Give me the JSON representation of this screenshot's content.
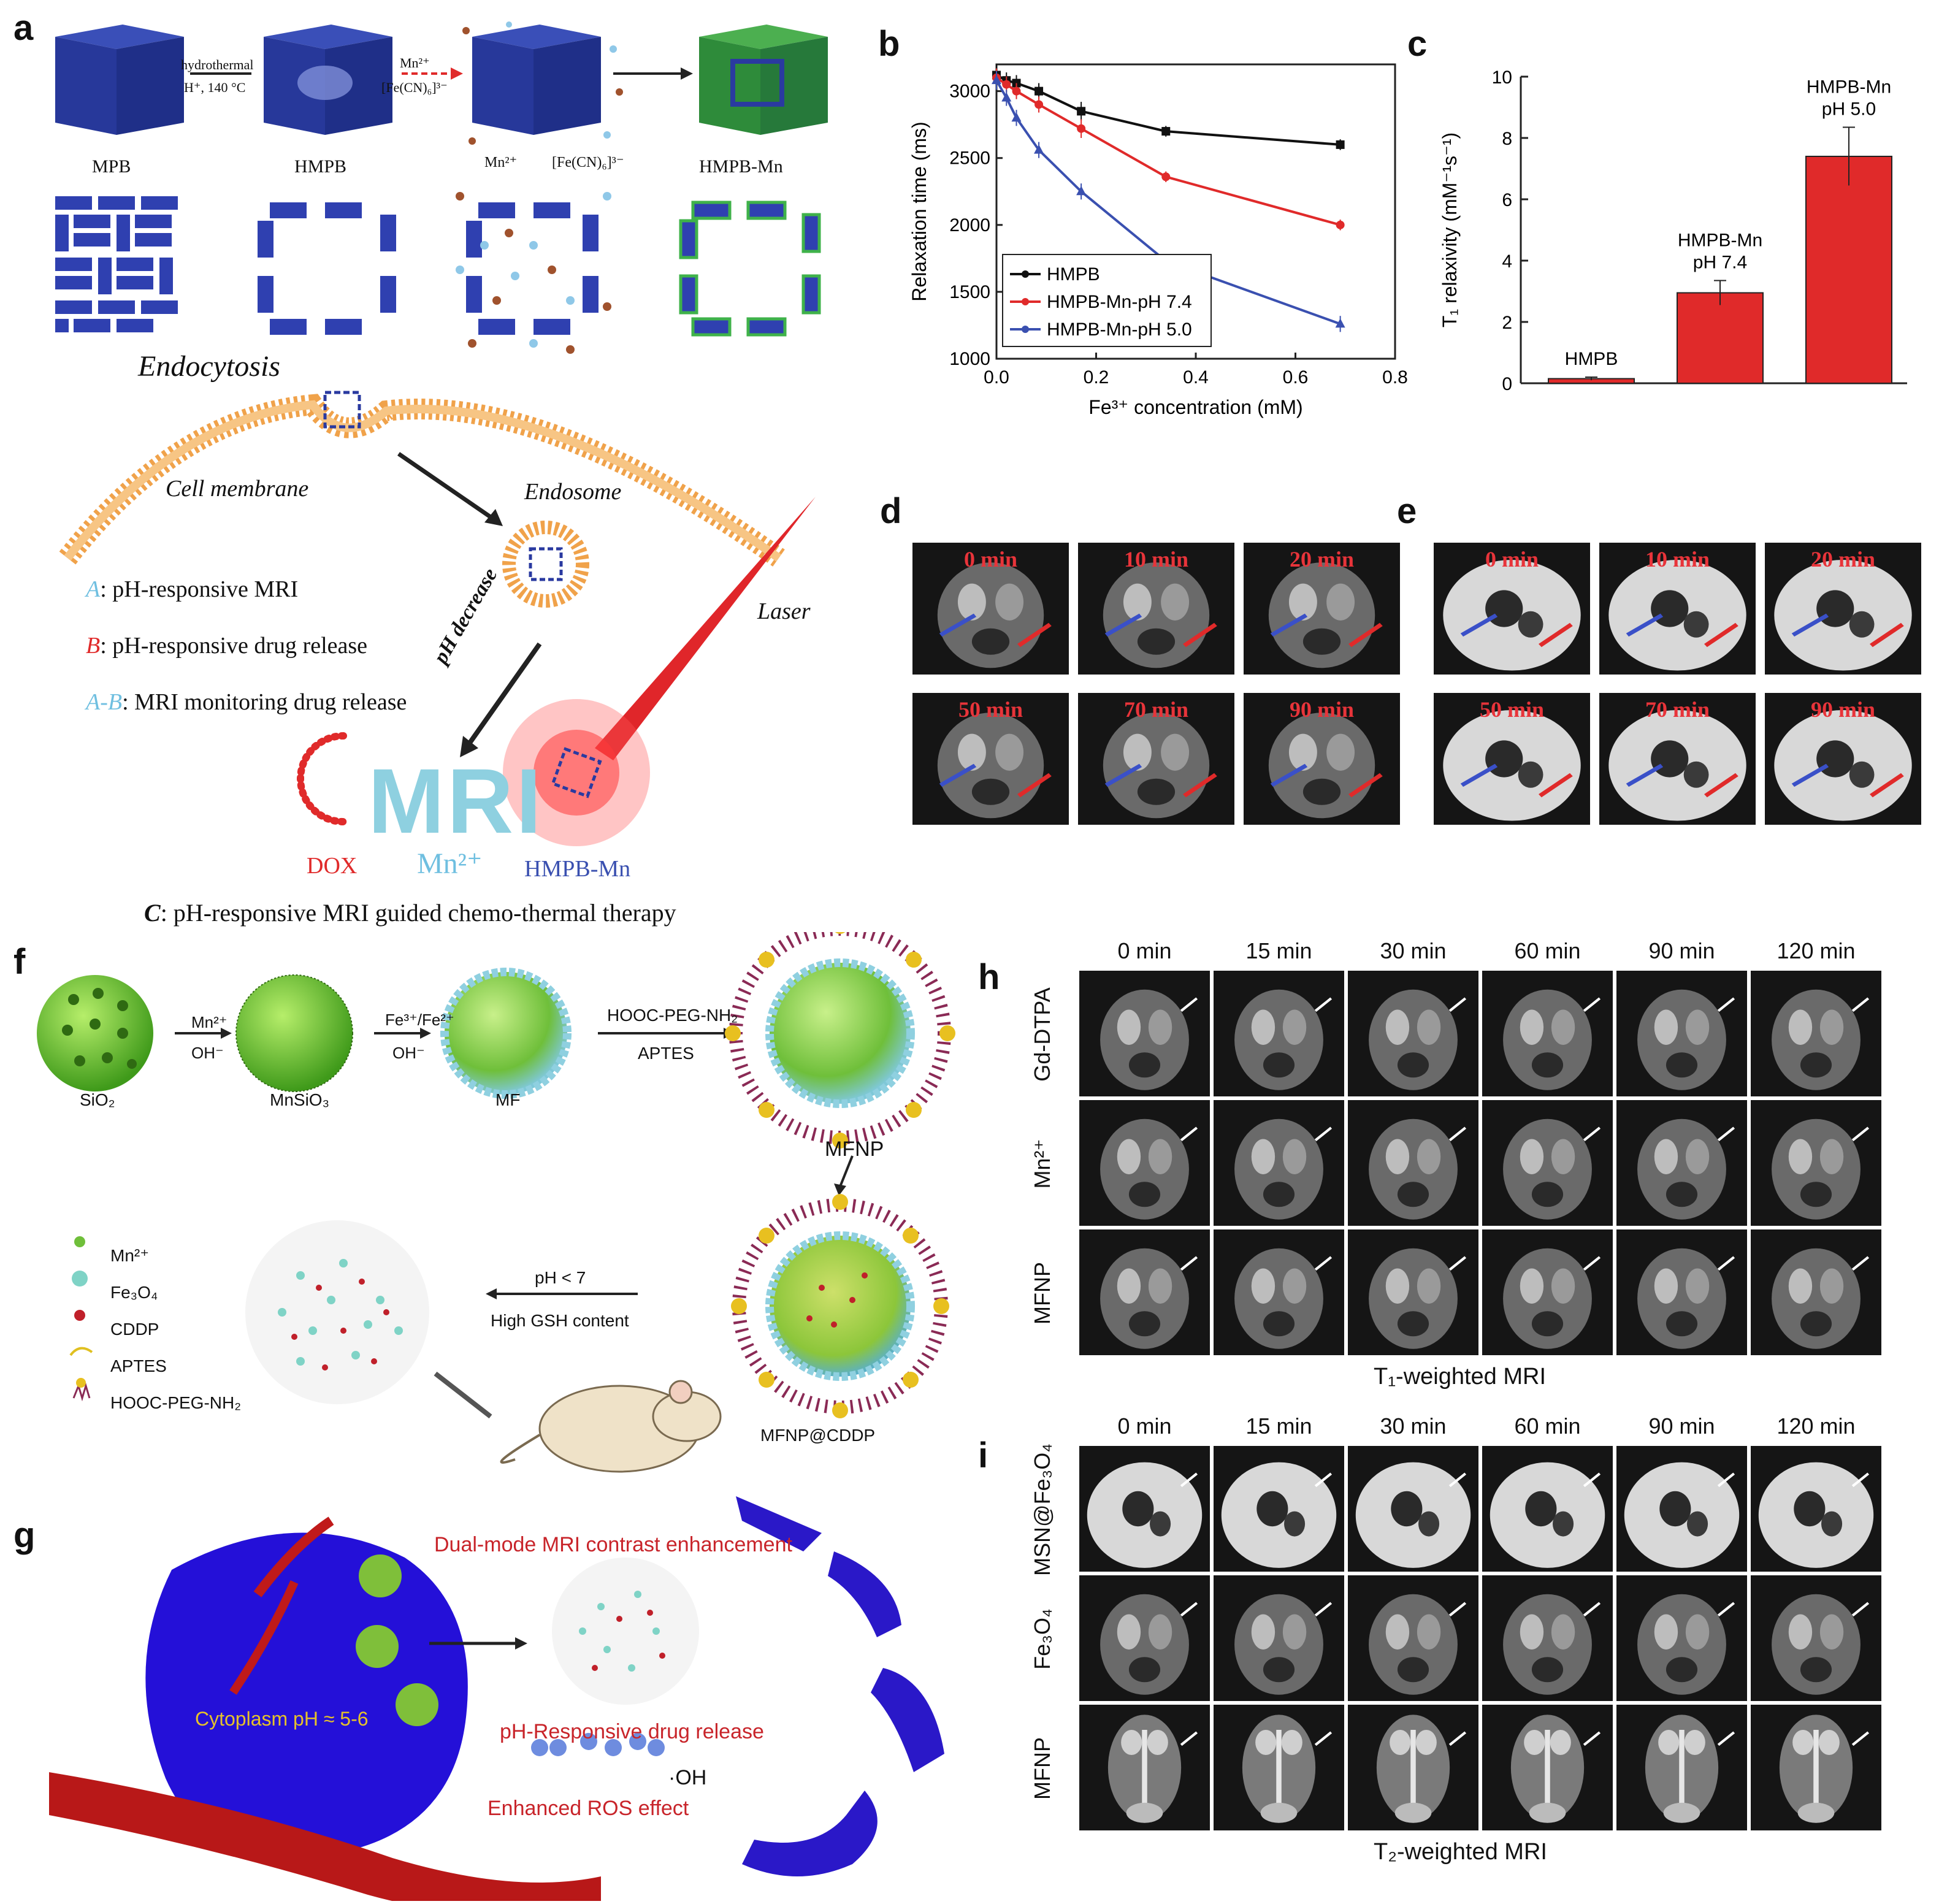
{
  "panels": {
    "a": {
      "label": "a",
      "stages": [
        "MPB",
        "HMPB",
        "",
        "HMPB-Mn"
      ],
      "arrow1_top": "hydrothermal",
      "arrow1_bottom": "H⁺, 140 °C",
      "arrow2_top": "Mn²⁺",
      "arrow2_bottom": "[Fe(CN)₆]³⁻",
      "ion_mn": "Mn²⁺",
      "ion_fe": "[Fe(CN)₆]³⁻",
      "endocytosis": "Endocytosis",
      "cell_membrane": "Cell membrane",
      "endosome": "Endosome",
      "laser": "Laser",
      "ph_decrease": "pH decrease",
      "legend": [
        {
          "key": "A",
          "text": ":  pH-responsive MRI"
        },
        {
          "key": "B",
          "text": ":  pH-responsive drug release"
        },
        {
          "key": "A-B",
          "text": ":  MRI monitoring drug release"
        }
      ],
      "mri_text": "MRI",
      "dox": "DOX",
      "mn": "Mn²⁺",
      "hmpb_mn": "HMPB-Mn",
      "caption_key": "C",
      "caption": ":  pH-responsive MRI guided chemo-thermal therapy"
    },
    "b": {
      "label": "b"
    },
    "c": {
      "label": "c"
    },
    "d": {
      "label": "d",
      "times": [
        "0 min",
        "10 min",
        "20 min",
        "50 min",
        "70 min",
        "90 min"
      ]
    },
    "e": {
      "label": "e",
      "times": [
        "0 min",
        "10 min",
        "20 min",
        "50 min",
        "70 min",
        "90 min"
      ]
    },
    "f": {
      "label": "f",
      "stages": [
        "SiO₂",
        "MnSiO₃",
        "MF",
        "MFNP",
        "MFNP@CDDP"
      ],
      "step1_top": "Mn²⁺",
      "step1_bottom": "OH⁻",
      "step2_top": "Fe³⁺/Fe²⁺",
      "step2_bottom": "OH⁻",
      "step3_top": "HOOC-PEG-NH₂",
      "step3_bottom": "APTES",
      "release_top": "pH < 7",
      "release_bottom": "High GSH content",
      "legend": [
        "Mn²⁺",
        "Fe₃O₄",
        "CDDP",
        "APTES",
        "HOOC-PEG-NH₂"
      ],
      "legend_colors": [
        "#6fbf3a",
        "#7fd3c6",
        "#c0202a",
        "#e0c020",
        "#8a2a55"
      ]
    },
    "g": {
      "label": "g",
      "dual_mode": "Dual-mode MRI contrast enhancement",
      "cytoplasm": "Cytoplasm pH ≈ 5-6",
      "ph_release": "pH-Responsive drug release",
      "oh": "·OH",
      "ros": "Enhanced ROS effect"
    },
    "h": {
      "label": "h",
      "times": [
        "0 min",
        "15 min",
        "30 min",
        "60 min",
        "90 min",
        "120 min"
      ],
      "rows": [
        "Gd-DTPA",
        "Mn²⁺",
        "MFNP"
      ],
      "caption": "T₁-weighted MRI"
    },
    "i": {
      "label": "i",
      "times": [
        "0 min",
        "15 min",
        "30 min",
        "60 min",
        "90 min",
        "120 min"
      ],
      "rows": [
        "MSN@Fe₃O₄",
        "Fe₃O₄",
        "MFNP"
      ],
      "caption": "T₂-weighted MRI"
    }
  },
  "chart_data": [
    {
      "type": "line",
      "panel": "b",
      "xlabel": "Fe³⁺ concentration (mM)",
      "ylabel": "Relaxation time (ms)",
      "xlim": [
        0.0,
        0.8
      ],
      "ylim": [
        1000,
        3200
      ],
      "xticks": [
        "0.0",
        "0.2",
        "0.4",
        "0.6",
        "0.8"
      ],
      "yticks": [
        "1000",
        "1500",
        "2000",
        "2500",
        "3000"
      ],
      "legend_position": "bottom-left",
      "series": [
        {
          "name": "HMPB",
          "color": "#111111",
          "marker": "square",
          "x": [
            0.0,
            0.02,
            0.04,
            0.085,
            0.17,
            0.34,
            0.69
          ],
          "y": [
            3120,
            3080,
            3060,
            3000,
            2850,
            2700,
            2600
          ],
          "err": [
            80,
            60,
            60,
            60,
            70,
            40,
            40
          ]
        },
        {
          "name": "HMPB-Mn-pH 7.4",
          "color": "#e02a2a",
          "marker": "circle",
          "x": [
            0.0,
            0.02,
            0.04,
            0.085,
            0.17,
            0.34,
            0.69
          ],
          "y": [
            3100,
            3050,
            3000,
            2900,
            2720,
            2360,
            2000
          ],
          "err": [
            70,
            60,
            60,
            60,
            70,
            40,
            40
          ]
        },
        {
          "name": "HMPB-Mn-pH 5.0",
          "color": "#3a50b0",
          "marker": "triangle",
          "x": [
            0.0,
            0.02,
            0.04,
            0.085,
            0.17,
            0.34,
            0.69
          ],
          "y": [
            3080,
            2950,
            2800,
            2560,
            2250,
            1730,
            1260
          ],
          "err": [
            70,
            60,
            60,
            60,
            60,
            40,
            60
          ]
        }
      ]
    },
    {
      "type": "bar",
      "panel": "c",
      "ylabel": "T₁ relaxivity (mM⁻¹s⁻¹)",
      "ylim": [
        0,
        10
      ],
      "yticks": [
        "0",
        "2",
        "4",
        "6",
        "8",
        "10"
      ],
      "categories": [
        "HMPB",
        "HMPB-Mn\npH 7.4",
        "HMPB-Mn\npH 5.0"
      ],
      "values": [
        0.15,
        2.95,
        7.4
      ],
      "err": [
        0.05,
        0.4,
        0.95
      ],
      "color": "#e02a2a"
    }
  ]
}
